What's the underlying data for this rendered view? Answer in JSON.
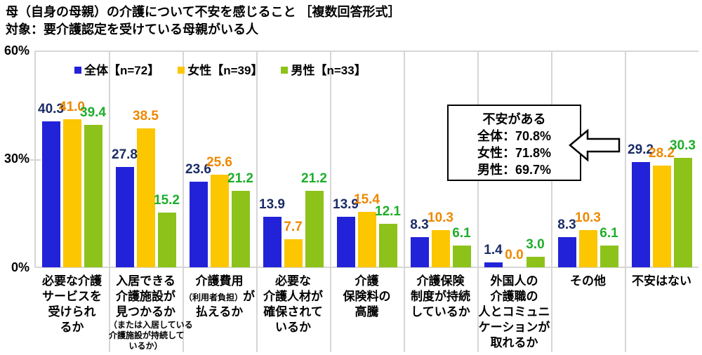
{
  "title": {
    "line1": "母（自身の母親）の介護について不安を感じること ［複数回答形式］",
    "line2": "対象：要介護認定を受けている母親がいる人"
  },
  "y_axis": {
    "ticks": [
      "60%",
      "30%",
      "0%"
    ],
    "max_label": "60%"
  },
  "legend": [
    {
      "label": "全体【n=72】",
      "color": "#2222d8"
    },
    {
      "label": "女性【n=39】",
      "color": "#fcc600"
    },
    {
      "label": "男性【n=33】",
      "color": "#8dc21a"
    }
  ],
  "callout": {
    "title": "不安がある",
    "lines": [
      "全体：70.8%",
      "女性：71.8%",
      "男性：69.7%"
    ]
  },
  "chart_data": {
    "type": "bar",
    "title": "母（自身の母親）の介護について不安を感じること ［複数回答形式］",
    "subtitle": "対象：要介護認定を受けている母親がいる人",
    "ylim": [
      0,
      60
    ],
    "ytick_interval": 30,
    "grid": "vertical category separators, light gray; horizontal lines at 0% and 60%",
    "legend_position": "top-left inside plot",
    "value_labels": "one decimal, colored per series, above each bar",
    "categories": [
      {
        "label": "必要な介護サービスを受けられるか",
        "lines": [
          [
            "必要な介護"
          ],
          [
            "サービスを"
          ],
          [
            "受けられ"
          ],
          [
            "るか"
          ]
        ]
      },
      {
        "label": "入居できる介護施設が見つかるか（または入居している介護施設が持続しているか）",
        "lines": [
          [
            "入居できる"
          ],
          [
            "介護施設が"
          ],
          [
            "見つかるか"
          ],
          [
            {
              "text": "（または入居している",
              "small": true
            }
          ],
          [
            {
              "text": "介護施設が持続して",
              "small": true
            }
          ],
          [
            {
              "text": "いるか）",
              "small": true
            }
          ]
        ]
      },
      {
        "label": "介護費用（利用者負担）が払えるか",
        "lines": [
          [
            "介護費用"
          ],
          [
            {
              "text": "（利用者負担）",
              "small": true
            },
            "が"
          ],
          [
            "払えるか"
          ]
        ]
      },
      {
        "label": "必要な介護人材が確保されているか",
        "lines": [
          [
            "必要な"
          ],
          [
            "介護人材が"
          ],
          [
            "確保されて"
          ],
          [
            "いるか"
          ]
        ]
      },
      {
        "label": "介護保険料の高騰",
        "lines": [
          [
            "介護"
          ],
          [
            "保険料の"
          ],
          [
            "高騰"
          ]
        ]
      },
      {
        "label": "介護保険制度が持続しているか",
        "lines": [
          [
            "介護保険"
          ],
          [
            "制度が持続"
          ],
          [
            "しているか"
          ]
        ]
      },
      {
        "label": "外国人の介護職の人とコミュニケーションが取れるか",
        "lines": [
          [
            "外国人の"
          ],
          [
            "介護職の"
          ],
          [
            "人とコミュニ"
          ],
          [
            "ケーションが"
          ],
          [
            "取れるか"
          ]
        ]
      },
      {
        "label": "その他",
        "lines": [
          [
            "その他"
          ]
        ]
      },
      {
        "label": "不安はない",
        "lines": [
          [
            "不安はない"
          ]
        ]
      }
    ],
    "series": [
      {
        "name": "全体【n=72】",
        "bar_color": "#2222d8",
        "label_color": "#1b2c66",
        "values": [
          40.3,
          27.8,
          23.6,
          13.9,
          13.9,
          8.3,
          1.4,
          8.3,
          29.2
        ]
      },
      {
        "name": "女性【n=39】",
        "bar_color": "#fcc600",
        "label_color": "#ee8800",
        "values": [
          41.0,
          38.5,
          25.6,
          7.7,
          15.4,
          10.3,
          0.0,
          10.3,
          28.2
        ]
      },
      {
        "name": "男性【n=33】",
        "bar_color": "#8dc21a",
        "label_color": "#1fad2b",
        "values": [
          39.4,
          15.2,
          21.2,
          21.2,
          12.1,
          6.1,
          3.0,
          6.1,
          30.3
        ]
      }
    ]
  },
  "colors": {
    "grid": "#d6d6d6",
    "background": "#ffffff",
    "text": "#000000"
  }
}
